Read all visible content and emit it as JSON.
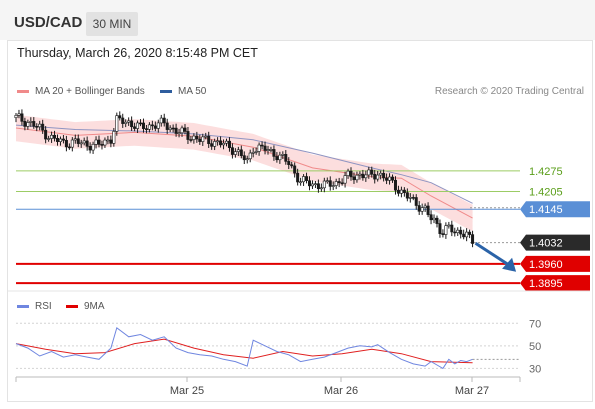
{
  "header": {
    "pair": "USD/CAD",
    "timeframe": "30 MIN"
  },
  "datetime": "Thursday, March 26, 2020 8:15:48 PM CET",
  "credit": "Research © 2020 Trading Central",
  "colors": {
    "band": "#fbd3d3",
    "ma20": "#f08a8a",
    "ma50": "#8f94c2",
    "green": "#9ccc65",
    "blue": "#5a8fd6",
    "red": "#e00000",
    "candle": "#1a1a1a",
    "arrow": "#2b63a8",
    "rsi": "#6f86e0",
    "ma9": "#e02020"
  },
  "chart_data": [
    {
      "type": "candlestick",
      "legend": [
        {
          "name": "MA 20 + Bollinger Bands",
          "color": "#f08a8a"
        },
        {
          "name": "MA 50",
          "color": "#2e5d9e"
        }
      ],
      "x_labels": [
        "Mar 25",
        "Mar 26",
        "Mar 27"
      ],
      "ylim": [
        1.3875,
        1.4525
      ],
      "last_price": 1.4032,
      "levels": [
        {
          "value": 1.4275,
          "label": "1.4275",
          "kind": "resistance",
          "color": "#9ccc65"
        },
        {
          "value": 1.4205,
          "label": "1.4205",
          "kind": "resistance",
          "color": "#9ccc65"
        },
        {
          "value": 1.4145,
          "label": "1.4145",
          "kind": "pivot",
          "color": "#5a8fd6"
        },
        {
          "value": 1.396,
          "label": "1.3960",
          "kind": "support",
          "color": "#e00000"
        },
        {
          "value": 1.3895,
          "label": "1.3895",
          "kind": "support",
          "color": "#e00000"
        }
      ],
      "price_path": [
        [
          0,
          1.4455
        ],
        [
          4,
          1.444
        ],
        [
          8,
          1.4418
        ],
        [
          12,
          1.4385
        ],
        [
          16,
          1.437
        ],
        [
          20,
          1.4372
        ],
        [
          24,
          1.4365
        ],
        [
          28,
          1.4362
        ],
        [
          32,
          1.4385
        ],
        [
          34,
          1.4445
        ],
        [
          38,
          1.444
        ],
        [
          42,
          1.442
        ],
        [
          46,
          1.443
        ],
        [
          50,
          1.4435
        ],
        [
          54,
          1.441
        ],
        [
          58,
          1.4395
        ],
        [
          62,
          1.438
        ],
        [
          66,
          1.4375
        ],
        [
          70,
          1.4365
        ],
        [
          74,
          1.4345
        ],
        [
          78,
          1.4305
        ],
        [
          80,
          1.4355
        ],
        [
          84,
          1.4348
        ],
        [
          88,
          1.433
        ],
        [
          92,
          1.43
        ],
        [
          96,
          1.424
        ],
        [
          100,
          1.423
        ],
        [
          104,
          1.4225
        ],
        [
          108,
          1.4235
        ],
        [
          112,
          1.4255
        ],
        [
          116,
          1.4262
        ],
        [
          120,
          1.4258
        ],
        [
          122,
          1.4268
        ],
        [
          126,
          1.424
        ],
        [
          130,
          1.4205
        ],
        [
          134,
          1.417
        ],
        [
          138,
          1.4145
        ],
        [
          140,
          1.411
        ],
        [
          142,
          1.4095
        ],
        [
          144,
          1.4068
        ],
        [
          146,
          1.4085
        ],
        [
          148,
          1.406
        ],
        [
          150,
          1.4075
        ],
        [
          152,
          1.4058
        ],
        [
          154,
          1.4032
        ]
      ],
      "ma20": [
        [
          0,
          1.442
        ],
        [
          20,
          1.4395
        ],
        [
          40,
          1.4405
        ],
        [
          60,
          1.4392
        ],
        [
          80,
          1.4355
        ],
        [
          100,
          1.4285
        ],
        [
          120,
          1.4255
        ],
        [
          130,
          1.425
        ],
        [
          140,
          1.419
        ],
        [
          154,
          1.4115
        ]
      ],
      "ma50": [
        [
          0,
          1.443
        ],
        [
          20,
          1.4415
        ],
        [
          40,
          1.441
        ],
        [
          60,
          1.44
        ],
        [
          80,
          1.438
        ],
        [
          100,
          1.4335
        ],
        [
          120,
          1.4285
        ],
        [
          130,
          1.4262
        ],
        [
          140,
          1.4235
        ],
        [
          154,
          1.4165
        ]
      ],
      "band_width": 0.0045,
      "arrow": {
        "from": [
          155,
          1.403
        ],
        "to": [
          168,
          1.394
        ],
        "direction": "down"
      }
    },
    {
      "type": "line",
      "legend": [
        {
          "name": "RSI",
          "color": "#6f86e0"
        },
        {
          "name": "9MA",
          "color": "#e00000"
        }
      ],
      "ylim": [
        25,
        80
      ],
      "y_ticks": [
        70,
        50,
        30
      ],
      "series": [
        {
          "name": "RSI",
          "values": [
            [
              0,
              52
            ],
            [
              4,
              48
            ],
            [
              8,
              41
            ],
            [
              12,
              45
            ],
            [
              16,
              40
            ],
            [
              20,
              42
            ],
            [
              24,
              40
            ],
            [
              28,
              38
            ],
            [
              32,
              48
            ],
            [
              34,
              66
            ],
            [
              38,
              58
            ],
            [
              42,
              60
            ],
            [
              46,
              55
            ],
            [
              50,
              58
            ],
            [
              54,
              48
            ],
            [
              58,
              44
            ],
            [
              62,
              42
            ],
            [
              66,
              41
            ],
            [
              70,
              38
            ],
            [
              74,
              36
            ],
            [
              78,
              32
            ],
            [
              80,
              55
            ],
            [
              84,
              50
            ],
            [
              88,
              45
            ],
            [
              92,
              42
            ],
            [
              96,
              36
            ],
            [
              100,
              38
            ],
            [
              104,
              40
            ],
            [
              108,
              44
            ],
            [
              112,
              48
            ],
            [
              116,
              50
            ],
            [
              120,
              49
            ],
            [
              122,
              51
            ],
            [
              126,
              44
            ],
            [
              130,
              38
            ],
            [
              134,
              34
            ],
            [
              138,
              32
            ],
            [
              140,
              36
            ],
            [
              142,
              33
            ],
            [
              144,
              30
            ],
            [
              146,
              38
            ],
            [
              148,
              34
            ],
            [
              150,
              37
            ],
            [
              152,
              36
            ],
            [
              154,
              38
            ]
          ]
        },
        {
          "name": "9MA",
          "values": [
            [
              0,
              52
            ],
            [
              10,
              47
            ],
            [
              20,
              43
            ],
            [
              30,
              44
            ],
            [
              40,
              52
            ],
            [
              50,
              56
            ],
            [
              60,
              48
            ],
            [
              70,
              42
            ],
            [
              80,
              39
            ],
            [
              90,
              45
            ],
            [
              100,
              41
            ],
            [
              110,
              43
            ],
            [
              120,
              47
            ],
            [
              130,
              43
            ],
            [
              140,
              36
            ],
            [
              154,
              35
            ]
          ]
        }
      ],
      "current": 38
    }
  ]
}
